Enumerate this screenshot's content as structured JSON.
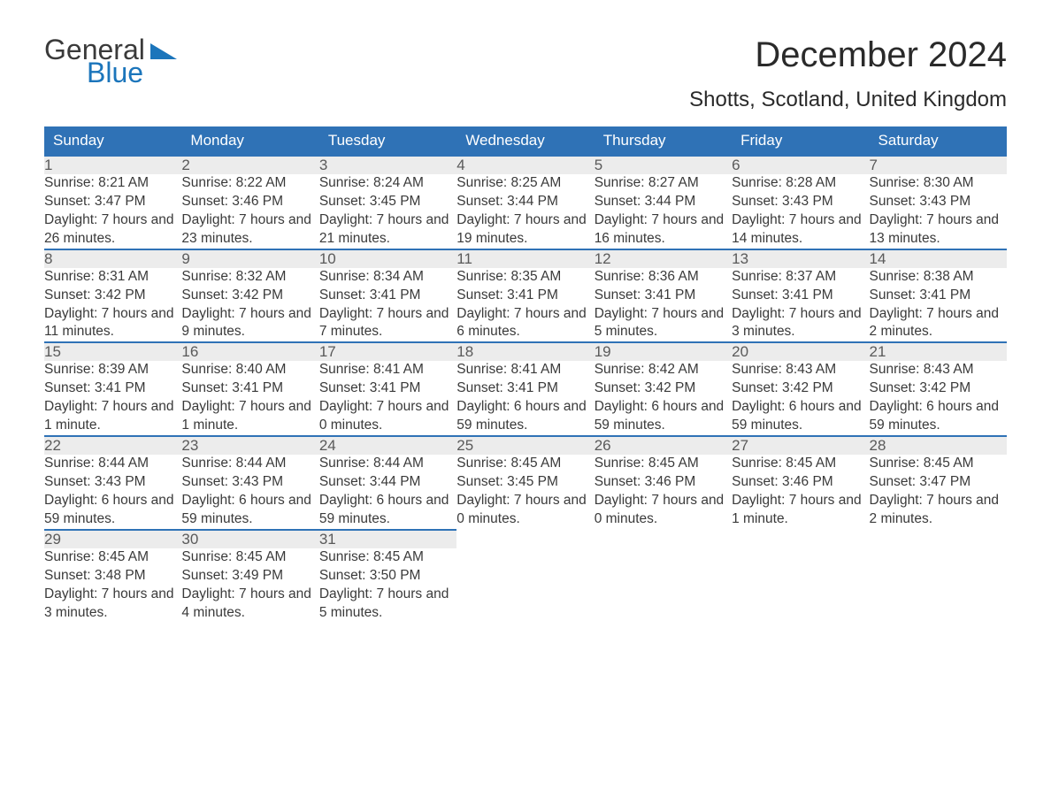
{
  "logo": {
    "line1": "General",
    "line2": "Blue"
  },
  "title": "December 2024",
  "location": "Shotts, Scotland, United Kingdom",
  "colors": {
    "header_bg": "#2f72b6",
    "header_text": "#ffffff",
    "daynum_bg": "#ececec",
    "border_top": "#2f72b6",
    "body_text": "#3a3a3a",
    "logo_blue": "#1b75bb"
  },
  "day_names": [
    "Sunday",
    "Monday",
    "Tuesday",
    "Wednesday",
    "Thursday",
    "Friday",
    "Saturday"
  ],
  "weeks": [
    [
      {
        "n": "1",
        "sr": "8:21 AM",
        "ss": "3:47 PM",
        "dl": "7 hours and 26 minutes."
      },
      {
        "n": "2",
        "sr": "8:22 AM",
        "ss": "3:46 PM",
        "dl": "7 hours and 23 minutes."
      },
      {
        "n": "3",
        "sr": "8:24 AM",
        "ss": "3:45 PM",
        "dl": "7 hours and 21 minutes."
      },
      {
        "n": "4",
        "sr": "8:25 AM",
        "ss": "3:44 PM",
        "dl": "7 hours and 19 minutes."
      },
      {
        "n": "5",
        "sr": "8:27 AM",
        "ss": "3:44 PM",
        "dl": "7 hours and 16 minutes."
      },
      {
        "n": "6",
        "sr": "8:28 AM",
        "ss": "3:43 PM",
        "dl": "7 hours and 14 minutes."
      },
      {
        "n": "7",
        "sr": "8:30 AM",
        "ss": "3:43 PM",
        "dl": "7 hours and 13 minutes."
      }
    ],
    [
      {
        "n": "8",
        "sr": "8:31 AM",
        "ss": "3:42 PM",
        "dl": "7 hours and 11 minutes."
      },
      {
        "n": "9",
        "sr": "8:32 AM",
        "ss": "3:42 PM",
        "dl": "7 hours and 9 minutes."
      },
      {
        "n": "10",
        "sr": "8:34 AM",
        "ss": "3:41 PM",
        "dl": "7 hours and 7 minutes."
      },
      {
        "n": "11",
        "sr": "8:35 AM",
        "ss": "3:41 PM",
        "dl": "7 hours and 6 minutes."
      },
      {
        "n": "12",
        "sr": "8:36 AM",
        "ss": "3:41 PM",
        "dl": "7 hours and 5 minutes."
      },
      {
        "n": "13",
        "sr": "8:37 AM",
        "ss": "3:41 PM",
        "dl": "7 hours and 3 minutes."
      },
      {
        "n": "14",
        "sr": "8:38 AM",
        "ss": "3:41 PM",
        "dl": "7 hours and 2 minutes."
      }
    ],
    [
      {
        "n": "15",
        "sr": "8:39 AM",
        "ss": "3:41 PM",
        "dl": "7 hours and 1 minute."
      },
      {
        "n": "16",
        "sr": "8:40 AM",
        "ss": "3:41 PM",
        "dl": "7 hours and 1 minute."
      },
      {
        "n": "17",
        "sr": "8:41 AM",
        "ss": "3:41 PM",
        "dl": "7 hours and 0 minutes."
      },
      {
        "n": "18",
        "sr": "8:41 AM",
        "ss": "3:41 PM",
        "dl": "6 hours and 59 minutes."
      },
      {
        "n": "19",
        "sr": "8:42 AM",
        "ss": "3:42 PM",
        "dl": "6 hours and 59 minutes."
      },
      {
        "n": "20",
        "sr": "8:43 AM",
        "ss": "3:42 PM",
        "dl": "6 hours and 59 minutes."
      },
      {
        "n": "21",
        "sr": "8:43 AM",
        "ss": "3:42 PM",
        "dl": "6 hours and 59 minutes."
      }
    ],
    [
      {
        "n": "22",
        "sr": "8:44 AM",
        "ss": "3:43 PM",
        "dl": "6 hours and 59 minutes."
      },
      {
        "n": "23",
        "sr": "8:44 AM",
        "ss": "3:43 PM",
        "dl": "6 hours and 59 minutes."
      },
      {
        "n": "24",
        "sr": "8:44 AM",
        "ss": "3:44 PM",
        "dl": "6 hours and 59 minutes."
      },
      {
        "n": "25",
        "sr": "8:45 AM",
        "ss": "3:45 PM",
        "dl": "7 hours and 0 minutes."
      },
      {
        "n": "26",
        "sr": "8:45 AM",
        "ss": "3:46 PM",
        "dl": "7 hours and 0 minutes."
      },
      {
        "n": "27",
        "sr": "8:45 AM",
        "ss": "3:46 PM",
        "dl": "7 hours and 1 minute."
      },
      {
        "n": "28",
        "sr": "8:45 AM",
        "ss": "3:47 PM",
        "dl": "7 hours and 2 minutes."
      }
    ],
    [
      {
        "n": "29",
        "sr": "8:45 AM",
        "ss": "3:48 PM",
        "dl": "7 hours and 3 minutes."
      },
      {
        "n": "30",
        "sr": "8:45 AM",
        "ss": "3:49 PM",
        "dl": "7 hours and 4 minutes."
      },
      {
        "n": "31",
        "sr": "8:45 AM",
        "ss": "3:50 PM",
        "dl": "7 hours and 5 minutes."
      },
      null,
      null,
      null,
      null
    ]
  ],
  "labels": {
    "sunrise": "Sunrise:",
    "sunset": "Sunset:",
    "daylight": "Daylight:"
  }
}
